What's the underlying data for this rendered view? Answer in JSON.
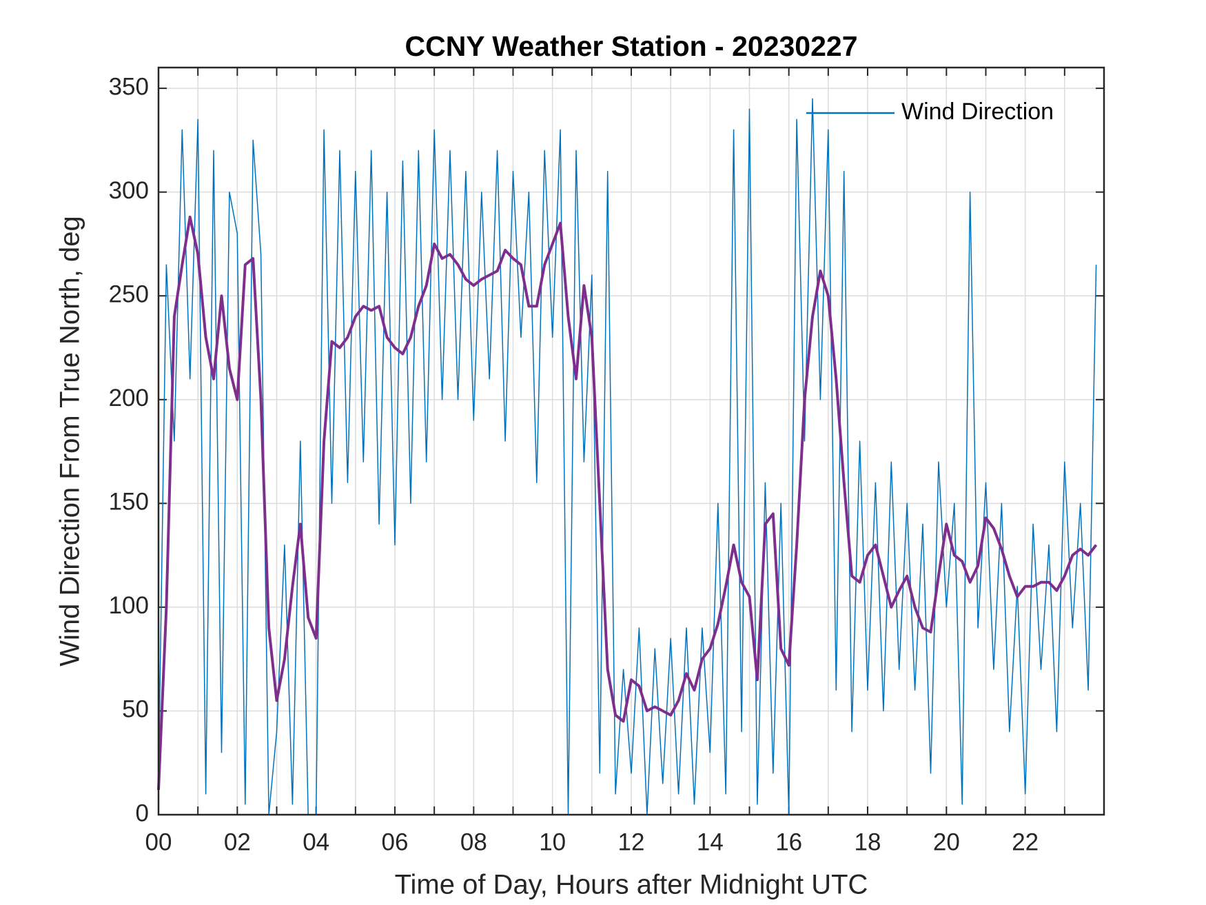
{
  "chart_data": {
    "type": "line",
    "title": "CCNY Weather Station - 20230227",
    "xlabel": "Time of Day, Hours after Midnight UTC",
    "ylabel": "Wind Direction From True North, deg",
    "xlim": [
      0,
      24
    ],
    "ylim": [
      0,
      360
    ],
    "xticks": [
      {
        "value": 0,
        "label": "00"
      },
      {
        "value": 2,
        "label": "02"
      },
      {
        "value": 4,
        "label": "04"
      },
      {
        "value": 6,
        "label": "06"
      },
      {
        "value": 8,
        "label": "08"
      },
      10,
      12,
      14,
      16,
      18,
      20,
      22
    ],
    "xminorticks": [
      1,
      3,
      5,
      7,
      9,
      11,
      13,
      15,
      17,
      19,
      21,
      23
    ],
    "yticks": [
      0,
      50,
      100,
      150,
      200,
      250,
      300,
      350
    ],
    "grid": true,
    "legend": "northeast",
    "x": [
      0,
      0.2,
      0.4,
      0.6,
      0.8,
      1,
      1.2,
      1.4,
      1.6,
      1.8,
      2,
      2.2,
      2.4,
      2.6,
      2.8,
      3,
      3.2,
      3.4,
      3.6,
      3.8,
      4,
      4.2,
      4.4,
      4.6,
      4.8,
      5,
      5.2,
      5.4,
      5.6,
      5.8,
      6,
      6.2,
      6.4,
      6.6,
      6.8,
      7,
      7.2,
      7.4,
      7.6,
      7.8,
      8,
      8.2,
      8.4,
      8.6,
      8.8,
      9,
      9.2,
      9.4,
      9.6,
      9.8,
      10,
      10.2,
      10.4,
      10.6,
      10.8,
      11,
      11.2,
      11.4,
      11.6,
      11.8,
      12,
      12.2,
      12.4,
      12.6,
      12.8,
      13,
      13.2,
      13.4,
      13.6,
      13.8,
      14,
      14.2,
      14.4,
      14.6,
      14.8,
      15,
      15.2,
      15.4,
      15.6,
      15.8,
      16,
      16.2,
      16.4,
      16.6,
      16.8,
      17,
      17.2,
      17.4,
      17.6,
      17.8,
      18,
      18.2,
      18.4,
      18.6,
      18.8,
      19,
      19.2,
      19.4,
      19.6,
      19.8,
      20,
      20.2,
      20.4,
      20.6,
      20.8,
      21,
      21.2,
      21.4,
      21.6,
      21.8,
      22,
      22.2,
      22.4,
      22.6,
      22.8,
      23,
      23.2,
      23.4,
      23.6,
      23.8
    ],
    "series": [
      {
        "name": "Wind Direction",
        "color": "#0072bd",
        "width": 1.5,
        "values": [
          15,
          265,
          180,
          330,
          210,
          335,
          10,
          320,
          30,
          300,
          280,
          5,
          325,
          270,
          0,
          40,
          130,
          5,
          180,
          0,
          0,
          330,
          150,
          320,
          160,
          310,
          170,
          320,
          140,
          300,
          130,
          315,
          150,
          320,
          170,
          330,
          200,
          320,
          200,
          310,
          190,
          300,
          210,
          320,
          180,
          310,
          230,
          300,
          160,
          320,
          230,
          330,
          0,
          320,
          170,
          260,
          20,
          310,
          10,
          70,
          20,
          90,
          0,
          80,
          15,
          85,
          10,
          90,
          5,
          90,
          30,
          150,
          10,
          330,
          40,
          340,
          5,
          160,
          20,
          150,
          0,
          335,
          180,
          345,
          200,
          330,
          60,
          310,
          40,
          180,
          60,
          160,
          50,
          170,
          70,
          150,
          60,
          140,
          20,
          170,
          100,
          150,
          5,
          300,
          90,
          160,
          70,
          150,
          40,
          110,
          10,
          140,
          70,
          130,
          40,
          170,
          90,
          150,
          60,
          265
        ]
      },
      {
        "color": "#7e2f8e",
        "width": 4,
        "values": [
          12,
          100,
          240,
          265,
          288,
          270,
          230,
          210,
          250,
          215,
          200,
          265,
          268,
          200,
          90,
          55,
          75,
          110,
          140,
          95,
          85,
          180,
          228,
          225,
          230,
          240,
          245,
          243,
          245,
          230,
          225,
          222,
          230,
          245,
          255,
          275,
          268,
          270,
          265,
          258,
          255,
          258,
          260,
          262,
          272,
          268,
          265,
          245,
          245,
          265,
          275,
          285,
          240,
          210,
          255,
          230,
          150,
          70,
          48,
          45,
          65,
          62,
          50,
          52,
          50,
          48,
          55,
          68,
          60,
          75,
          80,
          92,
          110,
          130,
          112,
          105,
          65,
          140,
          145,
          80,
          72,
          130,
          200,
          240,
          262,
          250,
          210,
          160,
          115,
          112,
          125,
          130,
          115,
          100,
          108,
          115,
          100,
          90,
          88,
          115,
          140,
          125,
          122,
          112,
          120,
          143,
          138,
          128,
          115,
          105,
          110,
          110,
          112,
          112,
          108,
          115,
          125,
          128,
          125,
          130
        ]
      }
    ]
  }
}
